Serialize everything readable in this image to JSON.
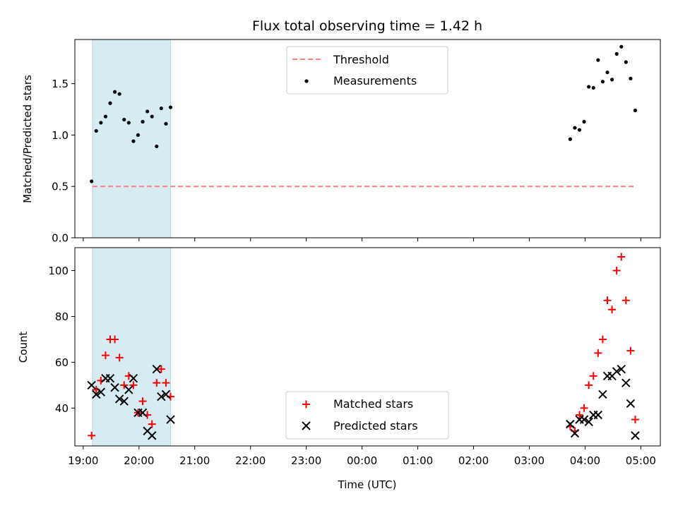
{
  "chart_data": {
    "title": "Flux total observing time = 1.42 h",
    "xlabel": "Time (UTC)",
    "x_ticks": [
      "19:00",
      "20:00",
      "21:00",
      "22:00",
      "23:00",
      "00:00",
      "01:00",
      "02:00",
      "03:00",
      "04:00",
      "05:00"
    ],
    "x_range_hours_since_19": [
      -0.15,
      10.35
    ],
    "shaded_span": [
      "19:10",
      "20:34"
    ],
    "shade_color": "#add8e6",
    "panels": [
      {
        "type": "scatter",
        "ylabel": "Matched/Predicted stars",
        "ylim": [
          0,
          1.93
        ],
        "yticks": [
          "0.0",
          "0.5",
          "1.0",
          "1.5"
        ],
        "legend_position": "upper center",
        "threshold": {
          "name": "Threshold",
          "value": 0.5,
          "x_start": "19:10",
          "x_end": "04:55",
          "color": "#ff7f7f",
          "style": "dashed"
        },
        "series": [
          {
            "name": "Measurements",
            "color": "#000000",
            "marker": "dot",
            "x": [
              "19:09",
              "19:14",
              "19:19",
              "19:24",
              "19:29",
              "19:34",
              "19:39",
              "19:44",
              "19:49",
              "19:54",
              "19:59",
              "20:04",
              "20:09",
              "20:14",
              "20:19",
              "20:24",
              "20:29",
              "20:34",
              "03:44",
              "03:49",
              "03:54",
              "03:59",
              "04:04",
              "04:09",
              "04:14",
              "04:19",
              "04:24",
              "04:29",
              "04:34",
              "04:39",
              "04:44",
              "04:49",
              "04:54"
            ],
            "y": [
              0.55,
              1.04,
              1.12,
              1.18,
              1.31,
              1.42,
              1.4,
              1.15,
              1.12,
              0.94,
              1.0,
              1.13,
              1.23,
              1.18,
              0.89,
              1.26,
              1.11,
              1.27,
              0.96,
              1.07,
              1.05,
              1.13,
              1.47,
              1.46,
              1.73,
              1.52,
              1.61,
              1.54,
              1.79,
              1.86,
              1.71,
              1.55,
              1.24
            ]
          }
        ]
      },
      {
        "type": "scatter",
        "ylabel": "Count",
        "ylim": [
          23.5,
          110
        ],
        "yticks": [
          "40",
          "60",
          "80",
          "100"
        ],
        "legend_position": "lower center",
        "series": [
          {
            "name": "Matched stars",
            "color": "#ff0000",
            "marker": "plus",
            "x": [
              "19:09",
              "19:14",
              "19:19",
              "19:24",
              "19:29",
              "19:34",
              "19:39",
              "19:44",
              "19:49",
              "19:54",
              "19:59",
              "20:04",
              "20:09",
              "20:14",
              "20:19",
              "20:24",
              "20:29",
              "20:34",
              "03:44",
              "03:49",
              "03:54",
              "03:59",
              "04:04",
              "04:09",
              "04:14",
              "04:19",
              "04:24",
              "04:29",
              "04:34",
              "04:39",
              "04:44",
              "04:49",
              "04:54"
            ],
            "y": [
              28,
              48,
              52,
              63,
              70,
              70,
              62,
              50,
              54,
              50,
              38,
              43,
              37,
              33,
              51,
              57,
              51,
              45,
              32,
              30,
              37,
              40,
              50,
              54,
              64,
              70,
              87,
              83,
              100,
              106,
              87,
              65,
              35
            ]
          },
          {
            "name": "Predicted stars",
            "color": "#000000",
            "marker": "x",
            "x": [
              "19:09",
              "19:14",
              "19:19",
              "19:24",
              "19:29",
              "19:34",
              "19:39",
              "19:44",
              "19:49",
              "19:54",
              "19:59",
              "20:04",
              "20:09",
              "20:14",
              "20:19",
              "20:24",
              "20:29",
              "20:34",
              "03:44",
              "03:49",
              "03:54",
              "03:59",
              "04:04",
              "04:09",
              "04:14",
              "04:19",
              "04:24",
              "04:29",
              "04:34",
              "04:39",
              "04:44",
              "04:49",
              "04:54"
            ],
            "y": [
              50,
              46,
              47,
              53,
              53,
              49,
              44,
              43,
              48,
              53,
              38,
              38,
              30,
              28,
              57,
              45,
              46,
              35,
              33,
              29,
              35,
              35,
              34,
              37,
              37,
              46,
              54,
              54,
              56,
              57,
              51,
              42,
              28
            ]
          }
        ]
      }
    ]
  }
}
